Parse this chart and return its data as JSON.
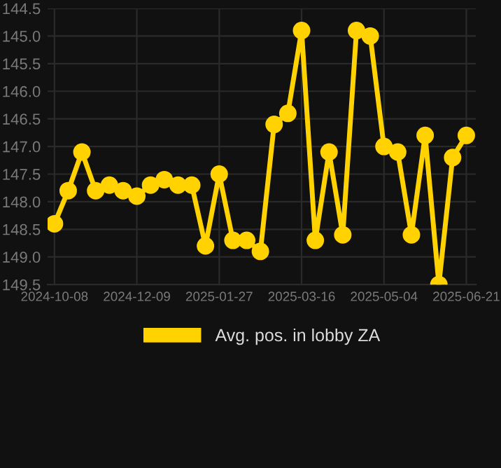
{
  "chart_data": {
    "type": "line",
    "categories": [
      "2024-10-08",
      null,
      null,
      null,
      null,
      null,
      "2024-12-09",
      null,
      null,
      null,
      null,
      null,
      "2025-01-27",
      null,
      null,
      null,
      null,
      null,
      "2025-03-16",
      null,
      null,
      null,
      null,
      null,
      "2025-05-04",
      null,
      null,
      null,
      null,
      null,
      "2025-06-21"
    ],
    "series": [
      {
        "name": "Avg. pos. in lobby ZA",
        "color": "#ffd200",
        "values": [
          148.4,
          147.8,
          147.1,
          147.8,
          147.7,
          147.8,
          147.9,
          147.7,
          147.6,
          147.7,
          147.7,
          148.8,
          147.5,
          148.7,
          148.7,
          148.9,
          146.6,
          146.4,
          144.9,
          148.7,
          147.1,
          148.6,
          144.9,
          145.0,
          147.0,
          147.1,
          148.6,
          146.8,
          149.5,
          147.2,
          146.8
        ]
      }
    ],
    "ylim": [
      149.5,
      144.5
    ],
    "yticks": [
      {
        "value": 149.5,
        "label": "149.5"
      },
      {
        "value": 149.0,
        "label": "149.0"
      },
      {
        "value": 148.5,
        "label": "148.5"
      },
      {
        "value": 148.0,
        "label": "148.0"
      },
      {
        "value": 147.5,
        "label": "147.5"
      },
      {
        "value": 147.0,
        "label": "147.0"
      },
      {
        "value": 146.5,
        "label": "146.5"
      },
      {
        "value": 146.0,
        "label": "146.0"
      },
      {
        "value": 145.5,
        "label": "145.5"
      },
      {
        "value": 145.0,
        "label": "145.0"
      },
      {
        "value": 144.5,
        "label": "144.5"
      }
    ],
    "grid": true,
    "legend": "bottom",
    "marker": "circle",
    "line_style": "solid"
  }
}
